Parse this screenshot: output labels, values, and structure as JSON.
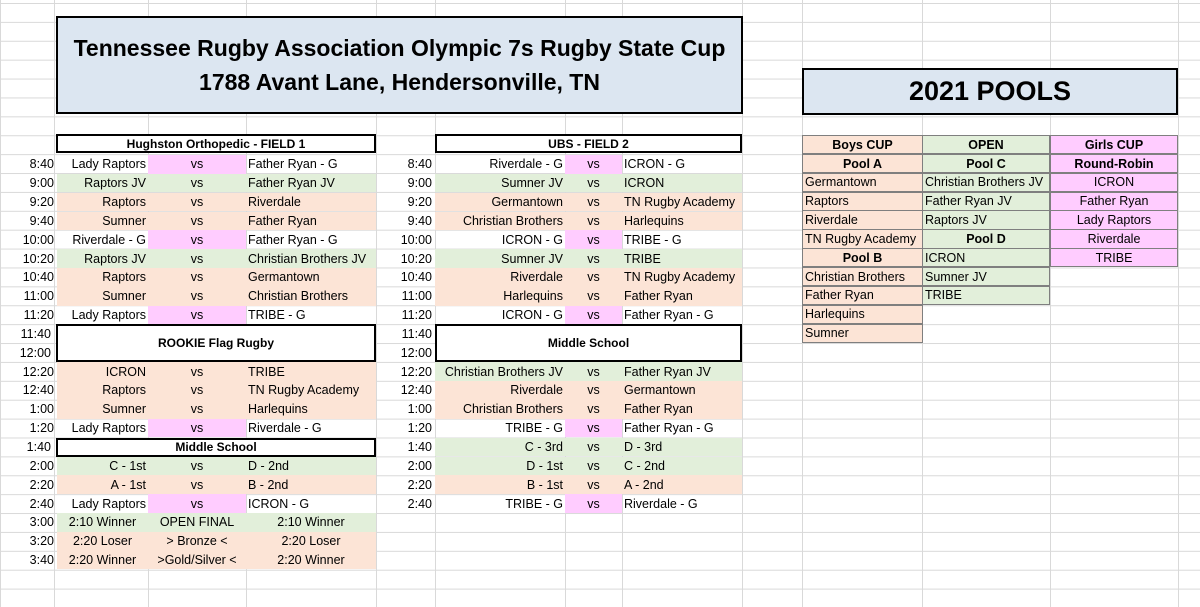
{
  "title_line1": "Tennessee Rugby Association Olympic 7s Rugby State Cup",
  "title_line2": "1788 Avant Lane,  Hendersonville, TN",
  "pools_title": "2021 POOLS",
  "field1": {
    "header": "Hughston Orthopedic - FIELD 1",
    "rows": [
      {
        "time": "8:40",
        "home": "Lady Raptors",
        "vs": "vs",
        "away": "Father Ryan - G",
        "color": "white",
        "hl": "pink"
      },
      {
        "time": "9:00",
        "home": "Raptors JV",
        "vs": "vs",
        "away": "Father Ryan JV",
        "color": "green"
      },
      {
        "time": "9:20",
        "home": "Raptors",
        "vs": "vs",
        "away": "Riverdale",
        "color": "salmon"
      },
      {
        "time": "9:40",
        "home": "Sumner",
        "vs": "vs",
        "away": "Father Ryan",
        "color": "salmon"
      },
      {
        "time": "10:00",
        "home": "Riverdale - G",
        "vs": "vs",
        "away": "Father Ryan - G",
        "color": "white",
        "hl": "pink"
      },
      {
        "time": "10:20",
        "home": "Raptors JV",
        "vs": "vs",
        "away": "Christian Brothers JV",
        "color": "green"
      },
      {
        "time": "10:40",
        "home": "Raptors",
        "vs": "vs",
        "away": "Germantown",
        "color": "salmon"
      },
      {
        "time": "11:00",
        "home": "Sumner",
        "vs": "vs",
        "away": "Christian Brothers",
        "color": "salmon"
      },
      {
        "time": "11:20",
        "home": "Lady Raptors",
        "vs": "vs",
        "away": "TRIBE - G",
        "color": "white",
        "hl": "pink"
      }
    ],
    "break_times": [
      "11:40",
      "12:00"
    ],
    "break_label": "ROOKIE Flag Rugby",
    "rows2": [
      {
        "time": "12:20",
        "home": "ICRON",
        "vs": "vs",
        "away": "TRIBE",
        "color": "salmon"
      },
      {
        "time": "12:40",
        "home": "Raptors",
        "vs": "vs",
        "away": "TN Rugby Academy",
        "color": "salmon"
      },
      {
        "time": "1:00",
        "home": "Sumner",
        "vs": "vs",
        "away": "Harlequins",
        "color": "salmon"
      },
      {
        "time": "1:20",
        "home": "Lady Raptors",
        "vs": "vs",
        "away": "Riverdale - G",
        "color": "white",
        "hl": "pink"
      }
    ],
    "ms_time": "1:40",
    "ms_label": "Middle School",
    "rows3": [
      {
        "time": "2:00",
        "home": "C - 1st",
        "vs": "vs",
        "away": "D - 2nd",
        "color": "green"
      },
      {
        "time": "2:20",
        "home": "A - 1st",
        "vs": "vs",
        "away": "B - 2nd",
        "color": "salmon"
      },
      {
        "time": "2:40",
        "home": "Lady Raptors",
        "vs": "vs",
        "away": "ICRON - G",
        "color": "white",
        "hl": "pink"
      }
    ],
    "finals": [
      {
        "time": "3:00",
        "home": "2:10 Winner",
        "vs": "OPEN FINAL",
        "away": "2:10 Winner",
        "color": "green"
      },
      {
        "time": "3:20",
        "home": "2:20 Loser",
        "vs": "> Bronze <",
        "away": "2:20 Loser",
        "color": "salmon"
      },
      {
        "time": "3:40",
        "home": "2:20 Winner",
        "vs": ">Gold/Silver <",
        "away": "2:20 Winner",
        "color": "salmon"
      }
    ]
  },
  "field2": {
    "header": "UBS - FIELD 2",
    "rows": [
      {
        "time": "8:40",
        "home": "Riverdale - G",
        "vs": "vs",
        "away": "ICRON - G",
        "color": "white",
        "hl": "pink"
      },
      {
        "time": "9:00",
        "home": "Sumner JV",
        "vs": "vs",
        "away": "ICRON",
        "color": "green"
      },
      {
        "time": "9:20",
        "home": "Germantown",
        "vs": "vs",
        "away": "TN Rugby Academy",
        "color": "salmon"
      },
      {
        "time": "9:40",
        "home": "Christian Brothers",
        "vs": "vs",
        "away": "Harlequins",
        "color": "salmon"
      },
      {
        "time": "10:00",
        "home": "ICRON - G",
        "vs": "vs",
        "away": "TRIBE - G",
        "color": "white",
        "hl": "pink"
      },
      {
        "time": "10:20",
        "home": "Sumner JV",
        "vs": "vs",
        "away": "TRIBE",
        "color": "green"
      },
      {
        "time": "10:40",
        "home": "Riverdale",
        "vs": "vs",
        "away": "TN Rugby Academy",
        "color": "salmon"
      },
      {
        "time": "11:00",
        "home": "Harlequins",
        "vs": "vs",
        "away": "Father Ryan",
        "color": "salmon"
      },
      {
        "time": "11:20",
        "home": "ICRON - G",
        "vs": "vs",
        "away": "Father Ryan - G",
        "color": "white",
        "hl": "pink"
      }
    ],
    "break_times": [
      "11:40",
      "12:00"
    ],
    "break_label": "Middle School",
    "rows2": [
      {
        "time": "12:20",
        "home": "Christian Brothers JV",
        "vs": "vs",
        "away": "Father Ryan JV",
        "color": "green"
      },
      {
        "time": "12:40",
        "home": "Riverdale",
        "vs": "vs",
        "away": "Germantown",
        "color": "salmon"
      },
      {
        "time": "1:00",
        "home": "Christian Brothers",
        "vs": "vs",
        "away": "Father Ryan",
        "color": "salmon"
      },
      {
        "time": "1:20",
        "home": "TRIBE - G",
        "vs": "vs",
        "away": "Father Ryan - G",
        "color": "white",
        "hl": "pink"
      },
      {
        "time": "1:40",
        "home": "C - 3rd",
        "vs": "vs",
        "away": "D - 3rd",
        "color": "green"
      },
      {
        "time": "2:00",
        "home": "D - 1st",
        "vs": "vs",
        "away": "C - 2nd",
        "color": "green"
      },
      {
        "time": "2:20",
        "home": "B - 1st",
        "vs": "vs",
        "away": "A - 2nd",
        "color": "salmon"
      },
      {
        "time": "2:40",
        "home": "TRIBE - G",
        "vs": "vs",
        "away": "Riverdale - G",
        "color": "white",
        "hl": "pink"
      }
    ]
  },
  "pools": {
    "boys_header": "Boys CUP",
    "open_header": "OPEN",
    "girls_header": "Girls CUP",
    "poolA_label": "Pool A",
    "poolC_label": "Pool C",
    "rr_label": "Round-Robin",
    "poolA": [
      "Germantown",
      "Raptors",
      "Riverdale",
      "TN Rugby Academy"
    ],
    "poolB_label": "Pool B",
    "poolB": [
      "Christian Brothers",
      "Father Ryan",
      "Harlequins",
      "Sumner"
    ],
    "poolC": [
      "Christian Brothers JV",
      "Father Ryan JV",
      "Raptors JV"
    ],
    "poolD_label": "Pool D",
    "poolD": [
      "ICRON",
      "Sumner JV",
      "TRIBE"
    ],
    "girls": [
      "ICRON",
      "Father Ryan",
      "Lady Raptors",
      "Riverdale",
      "TRIBE"
    ]
  },
  "colors": {
    "salmon": "#fce4d6",
    "green": "#e2efda",
    "pink": "#ffccff",
    "title_bg": "#dce6f1"
  }
}
